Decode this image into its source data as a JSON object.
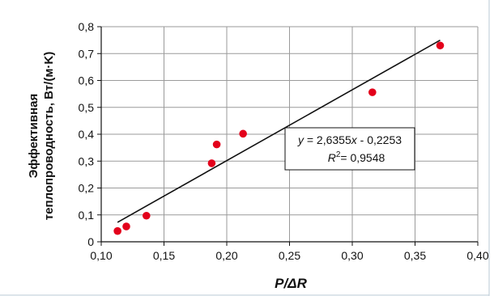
{
  "chart_data": {
    "type": "scatter",
    "title": "",
    "xlabel": "P/ΔR",
    "ylabel_line1": "Эффективная",
    "ylabel_line2": "теплопроводность, Вт/(м·K)",
    "xlim": [
      0.1,
      0.4
    ],
    "ylim": [
      0,
      0.8
    ],
    "x_ticks": [
      0.1,
      0.15,
      0.2,
      0.25,
      0.3,
      0.35,
      0.4
    ],
    "x_tick_labels": [
      "0,10",
      "0,15",
      "0,20",
      "0,25",
      "0,30",
      "0,35",
      "0,40"
    ],
    "y_ticks": [
      0,
      0.1,
      0.2,
      0.3,
      0.4,
      0.5,
      0.6,
      0.7,
      0.8
    ],
    "y_tick_labels": [
      "0",
      "0,1",
      "0,2",
      "0,3",
      "0,4",
      "0,5",
      "0,6",
      "0,7",
      "0,8"
    ],
    "grid": true,
    "point_color": "#e3001b",
    "line_color": "#111111",
    "grid_color": "#9a9a9a",
    "frame_color": "#b8c8d6",
    "points": [
      {
        "x": 0.113,
        "y": 0.04
      },
      {
        "x": 0.12,
        "y": 0.057
      },
      {
        "x": 0.136,
        "y": 0.097
      },
      {
        "x": 0.188,
        "y": 0.292
      },
      {
        "x": 0.192,
        "y": 0.362
      },
      {
        "x": 0.213,
        "y": 0.402
      },
      {
        "x": 0.316,
        "y": 0.556
      },
      {
        "x": 0.37,
        "y": 0.73
      }
    ],
    "trendline": {
      "slope": 2.6355,
      "intercept": -0.2253,
      "x_start": 0.113,
      "x_end": 0.37
    },
    "annotation": {
      "equation_prefix": "y",
      "equation_rest": " = 2,6355",
      "equation_var": "x",
      "equation_tail": " - 0,2253",
      "r2_prefix": "R",
      "r2_sup": "2",
      "r2_value": "= 0,9548"
    }
  }
}
